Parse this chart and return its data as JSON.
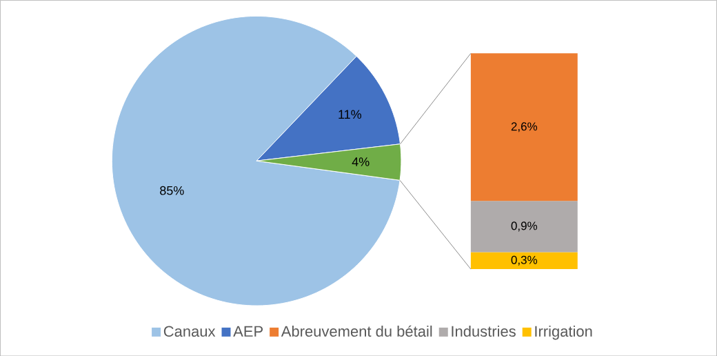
{
  "chart_data": [
    {
      "type": "pie",
      "categories": [
        "Canaux",
        "AEP",
        null
      ],
      "values": [
        85,
        11,
        4
      ],
      "colors": [
        "#9dc3e6",
        "#4472c4",
        "#70ad47"
      ],
      "value_labels": [
        "85%",
        "11%",
        "4%"
      ],
      "legend": "bottom"
    },
    {
      "type": "bar",
      "stacked": true,
      "categories": [
        null
      ],
      "legend": "bottom",
      "series": [
        {
          "name": "Irrigation",
          "color": "#ffc000",
          "values": [
            0.3
          ],
          "value_labels": [
            "0,3%"
          ]
        },
        {
          "name": "Industries",
          "color": "#afabab",
          "values": [
            0.9
          ],
          "value_labels": [
            "0,9%"
          ]
        },
        {
          "name": "Abreuvement du bétail",
          "color": "#ed7d31",
          "values": [
            2.6
          ],
          "value_labels": [
            "2,6%"
          ]
        }
      ]
    }
  ]
}
